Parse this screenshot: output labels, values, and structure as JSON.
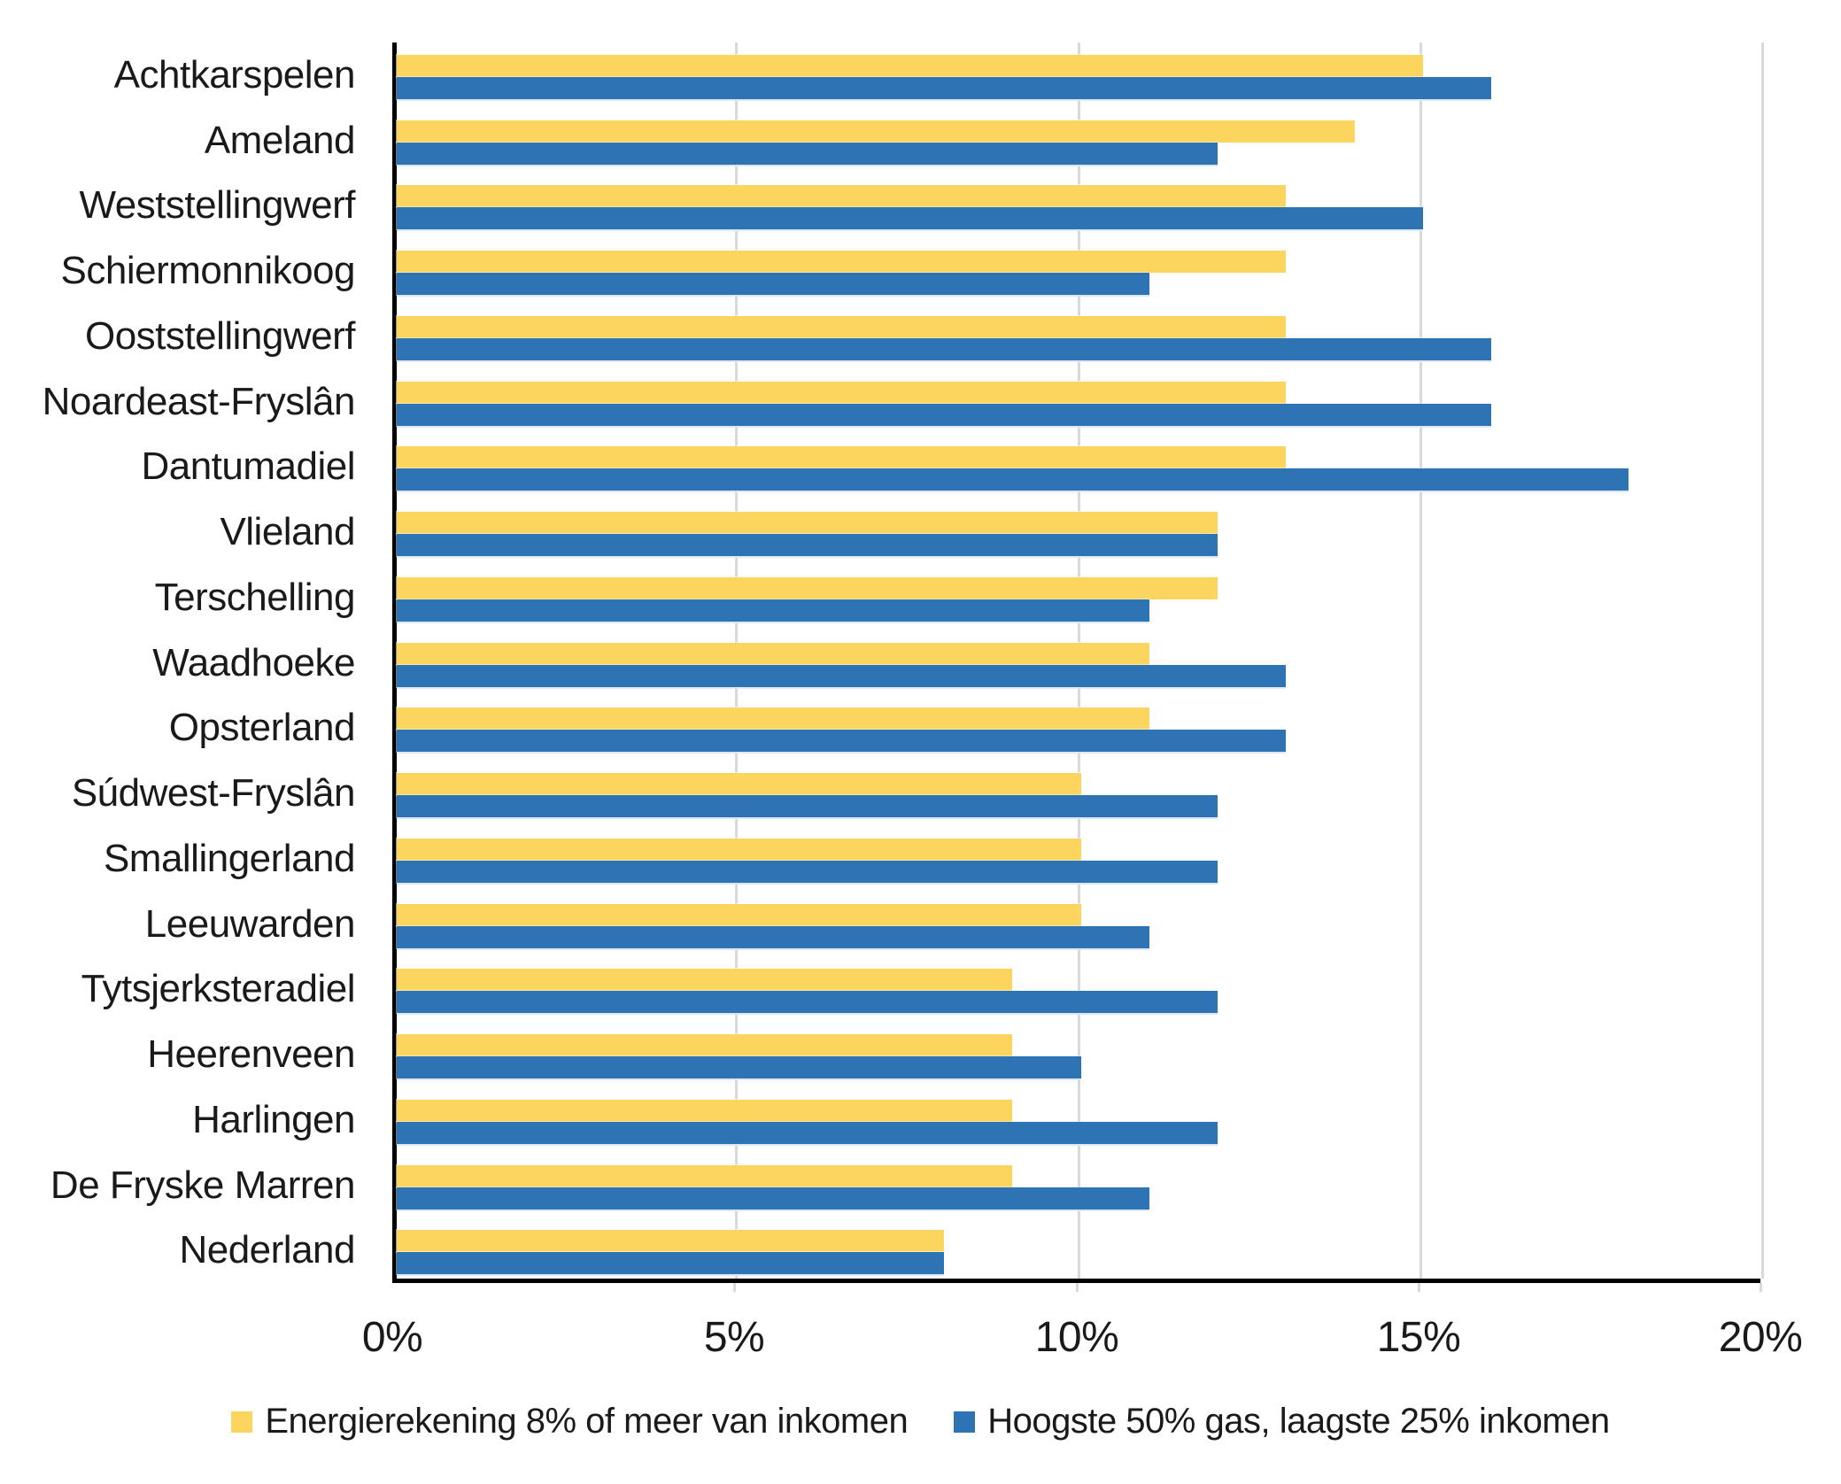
{
  "chart_data": {
    "type": "bar",
    "orientation": "horizontal",
    "title": "",
    "xlabel": "",
    "ylabel": "",
    "xlim": [
      0,
      20
    ],
    "x_ticks": [
      "0%",
      "5%",
      "10%",
      "15%",
      "20%"
    ],
    "x_tick_values": [
      0,
      5,
      10,
      15,
      20
    ],
    "grid": "vertical",
    "legend_position": "bottom",
    "categories": [
      "Achtkarspelen",
      "Ameland",
      "Weststellingwerf",
      "Schiermonnikoog",
      "Ooststellingwerf",
      "Noardeast-Fryslân",
      "Dantumadiel",
      "Vlieland",
      "Terschelling",
      "Waadhoeke",
      "Opsterland",
      "Súdwest-Fryslân",
      "Smallingerland",
      "Leeuwarden",
      "Tytsjerksteradiel",
      "Heerenveen",
      "Harlingen",
      "De Fryske Marren",
      "Nederland"
    ],
    "series": [
      {
        "name": "Energierekening 8% of meer van inkomen",
        "color": "#FCD55F",
        "values": [
          15,
          14,
          13,
          13,
          13,
          13,
          13,
          12,
          12,
          11,
          11,
          10,
          10,
          10,
          9,
          9,
          9,
          9,
          8
        ]
      },
      {
        "name": "Hoogste 50% gas, laagste 25% inkomen",
        "color": "#2E74B5",
        "values": [
          16,
          12,
          15,
          11,
          16,
          16,
          18,
          12,
          11,
          13,
          13,
          12,
          12,
          11,
          12,
          10,
          12,
          11,
          8
        ]
      }
    ]
  },
  "colors": {
    "series_yellow": "#FCD55F",
    "series_blue": "#2E74B5",
    "gridline": "#D9D9D9",
    "axis": "#000000",
    "text": "#1A1A1A",
    "background": "#FFFFFF"
  }
}
